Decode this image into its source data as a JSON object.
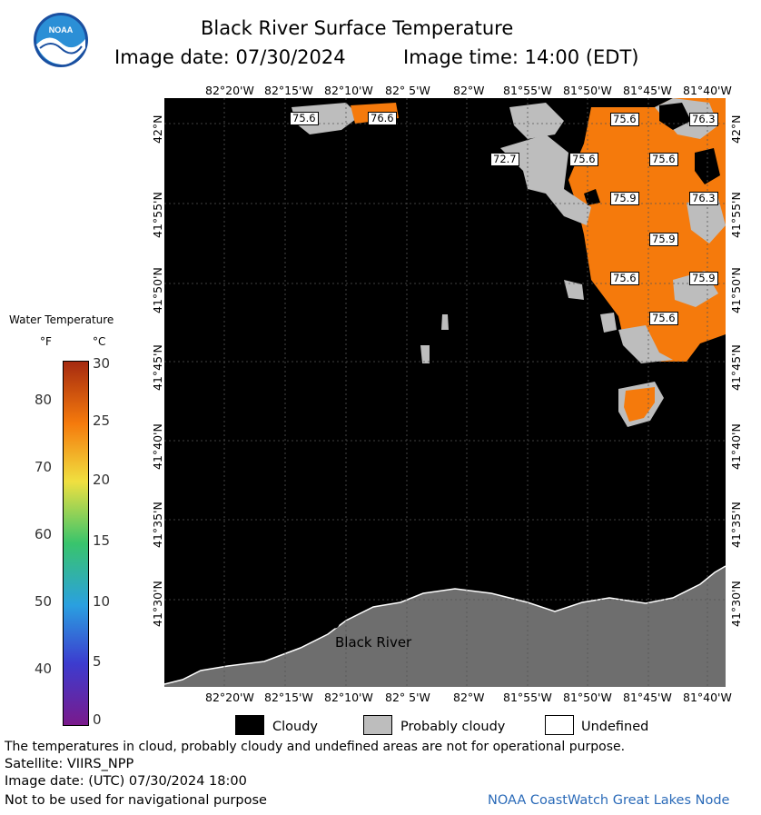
{
  "header": {
    "title": "Black River Surface Temperature",
    "image_date": "Image date: 07/30/2024",
    "image_time": "Image time: 14:00 (EDT)"
  },
  "logo": {
    "text": "NOAA"
  },
  "map": {
    "lon_ticks": [
      "82°20'W",
      "82°15'W",
      "82°10'W",
      "82° 5'W",
      "82°W",
      "81°55'W",
      "81°50'W",
      "81°45'W",
      "81°40'W"
    ],
    "lat_ticks": [
      "42°N",
      "41°55'N",
      "41°50'N",
      "41°45'N",
      "41°40'N",
      "41°35'N",
      "41°30'N"
    ],
    "place_label": "Black River",
    "temp_labels": [
      "75.6",
      "76.6",
      "75.6",
      "76.3",
      "72.7",
      "75.6",
      "75.6",
      "75.9",
      "76.3",
      "75.9",
      "75.6",
      "75.9",
      "75.6"
    ],
    "colors": {
      "water_black": "#000000",
      "cloud_gray": "#bdbdbd",
      "land_gray": "#6e6e6e",
      "warm_orange": "#f57a0c"
    }
  },
  "legend": {
    "title": "Water Temperature",
    "unit_f": "°F",
    "unit_c": "°C",
    "f_values": [
      "80",
      "70",
      "60",
      "50",
      "40"
    ],
    "c_values": [
      "30",
      "25",
      "20",
      "15",
      "10",
      "5",
      "0"
    ],
    "scale_min_c": 0,
    "scale_max_c": 30
  },
  "key": {
    "cloudy": "Cloudy",
    "probably_cloudy": "Probably cloudy",
    "undefined": "Undefined"
  },
  "footer": {
    "disclaimer": "The temperatures in cloud, probably cloudy and undefined areas are not for operational purpose.",
    "satellite": "Satellite: VIIRS_NPP",
    "utc_date": "Image date: (UTC) 07/30/2024  18:00",
    "navigation": "Not to be used for navigational purpose",
    "credit": "NOAA CoastWatch Great Lakes Node"
  }
}
